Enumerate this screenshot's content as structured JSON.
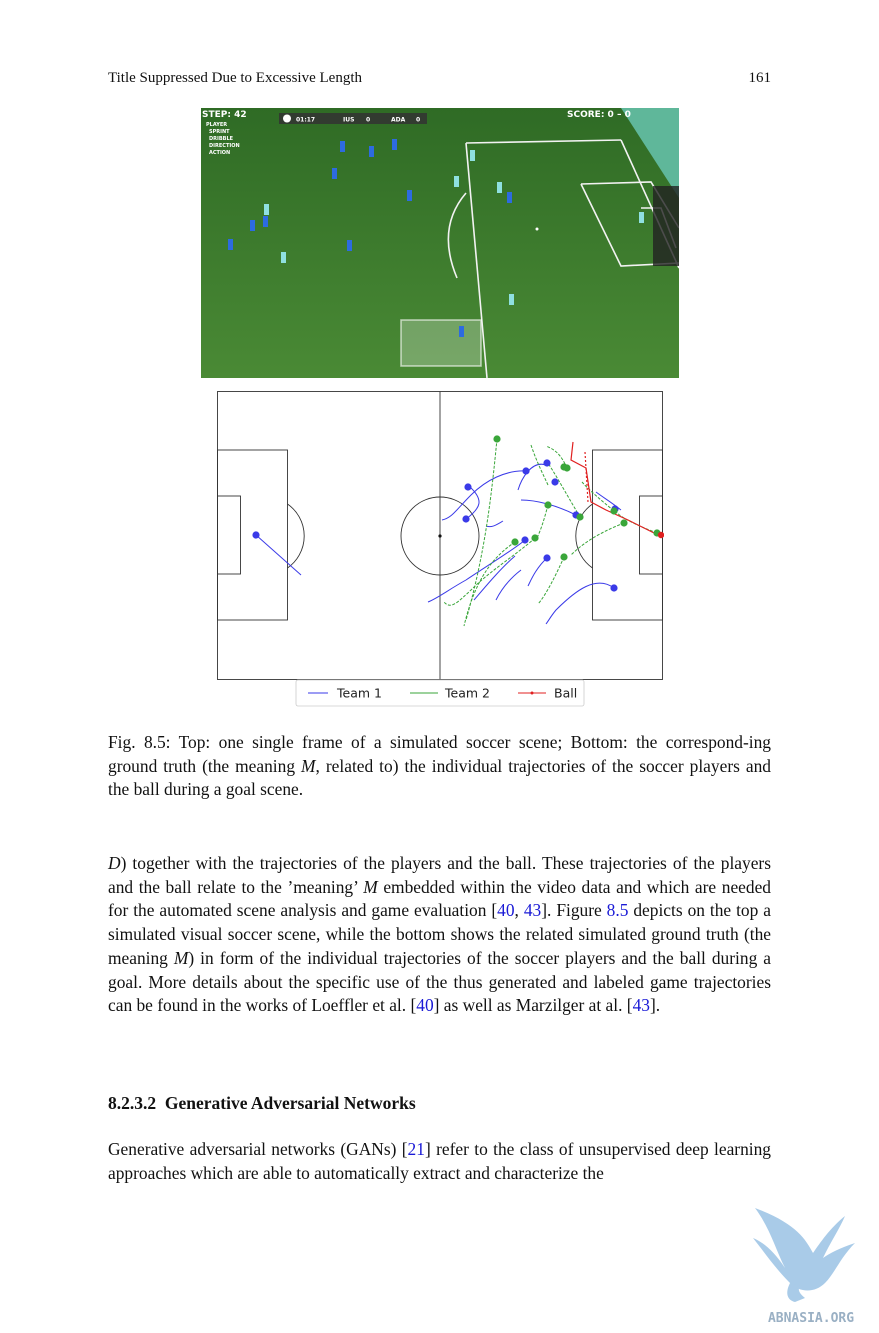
{
  "header": {
    "title": "Title Suppressed Due to Excessive Length",
    "page_number": "161"
  },
  "game_hud": {
    "step": "STEP: 42",
    "score": "SCORE: 0 – 0",
    "info_labels": [
      "PLAYER",
      "SPRINT",
      "DRIBBLE",
      "DIRECTION",
      "ACTION"
    ],
    "time": "01:17",
    "team_left": "IUS",
    "team_left_score": "0",
    "team_right": "ADA",
    "team_right_score": "0"
  },
  "legend": {
    "team1": "Team 1",
    "team2": "Team 2",
    "ball": "Ball"
  },
  "colors": {
    "team1": "#3a3ae8",
    "team2": "#3aa63a",
    "ball": "#e02020",
    "link": "#1a1ad6",
    "grass": "#3f7a2e"
  },
  "caption": {
    "p1": "Fig. 8.5: Top: one single frame of a simulated soccer scene; Bottom: the correspond-ing ground truth (the meaning ",
    "m": "M",
    "p2": ", related to) the individual trajectories of the soccer players and the ball during a goal scene."
  },
  "body1": {
    "d": "D",
    "s1": ") together with the trajectories of the players and the ball. These trajectories of the players and the ball relate to the ’meaning’ ",
    "m": "M",
    "s2": " embedded within the video data and which are needed for the automated scene analysis and game evaluation  [",
    "ref40": "40",
    "comma": ", ",
    "ref43": "43",
    "s3": "]. Figure ",
    "fig": "8.5",
    "s4": " depicts on the top a simulated visual soccer scene, while the bottom shows the related simulated ground truth (the meaning ",
    "m2": "M",
    "s5": ") in form of the individual trajectories of the soccer players and the ball during a goal. More details about the specific use of the thus generated and labeled game trajectories can be found in the works of Loeffler et al. [",
    "ref40b": "40",
    "s6": "] as well as Marzilger at al. [",
    "ref43b": "43",
    "s7": "]."
  },
  "section": {
    "number": "8.2.3.2",
    "title": "Generative Adversarial Networks"
  },
  "body2": {
    "s1": "Generative adversarial networks (GANs) [",
    "ref21": "21",
    "s2": "] refer to the class of unsupervised deep learning approaches which are able to automatically extract and characterize the"
  },
  "watermark": "ABNASIA.ORG"
}
